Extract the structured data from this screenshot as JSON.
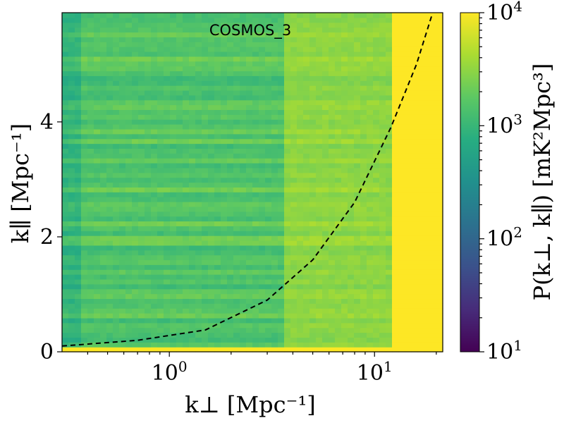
{
  "chart_data": {
    "type": "heatmap",
    "title": "COSMOS_3",
    "xlabel": "k⊥ [Mpc⁻¹]",
    "ylabel": "k∥ [Mpc⁻¹]",
    "x_scale": "log",
    "xlim": [
      0.3,
      21.5
    ],
    "ylim": [
      0,
      5.9
    ],
    "x_ticks": [
      {
        "value": 1,
        "label": "10",
        "exp": "0"
      },
      {
        "value": 10,
        "label": "10",
        "exp": "1"
      }
    ],
    "y_ticks": [
      {
        "value": 0,
        "label": "0"
      },
      {
        "value": 2,
        "label": "2"
      },
      {
        "value": 4,
        "label": "4"
      }
    ],
    "colorbar": {
      "label": "P(k⊥, k∥) [mK²Mpc³]",
      "scale": "log",
      "range": [
        10,
        10000
      ],
      "colormap": "viridis",
      "ticks": [
        {
          "value": 10,
          "label": "10",
          "exp": "1"
        },
        {
          "value": 100,
          "label": "10",
          "exp": "2"
        },
        {
          "value": 1000,
          "label": "10",
          "exp": "3"
        },
        {
          "value": 10000,
          "label": "10",
          "exp": "4"
        }
      ]
    },
    "wedge_line": {
      "style": "dashed",
      "color": "#000000",
      "points": [
        [
          0.3,
          0.1
        ],
        [
          0.7,
          0.2
        ],
        [
          1.5,
          0.38
        ],
        [
          3,
          0.9
        ],
        [
          5,
          1.6
        ],
        [
          8,
          2.6
        ],
        [
          12,
          3.9
        ],
        [
          16,
          5.0
        ],
        [
          19,
          5.85
        ]
      ]
    },
    "regions": [
      {
        "x_from": 0.3,
        "x_to": 0.36,
        "log10_power": 3.0,
        "note": "alternating bands"
      },
      {
        "x_from": 0.36,
        "x_to": 3.5,
        "log10_power": 3.2
      },
      {
        "x_from": 3.5,
        "x_to": 12,
        "log10_power": 3.5
      },
      {
        "x_from": 12,
        "x_to": 21.5,
        "log10_power": 4.0
      }
    ],
    "grid": false
  }
}
